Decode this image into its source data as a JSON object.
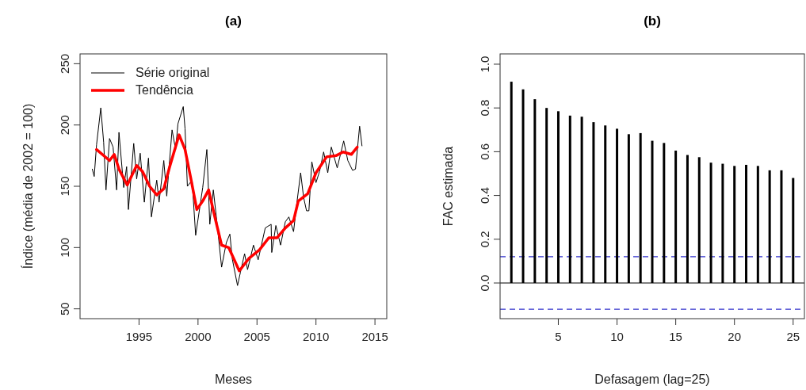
{
  "chart_data": [
    {
      "type": "line",
      "title": "(a)",
      "xlabel": "Meses",
      "ylabel": "Índice (média de 2002 = 100)",
      "xlim": [
        1990,
        2016
      ],
      "xticks": [
        1995,
        2000,
        2005,
        2010,
        2015
      ],
      "ylim": [
        42,
        258
      ],
      "yticks": [
        50,
        100,
        150,
        200,
        250
      ],
      "legend": "top left",
      "grid": false,
      "line_style": "solid",
      "marker": "none",
      "series": [
        {
          "name": "Série original",
          "color": "#000000",
          "x": [
            1991.04,
            1991.2,
            1991.4,
            1991.76,
            1992.0,
            1992.2,
            1992.5,
            1992.8,
            1993.1,
            1993.3,
            1993.7,
            1993.95,
            1994.1,
            1994.55,
            1994.8,
            1995.1,
            1995.45,
            1995.8,
            1996.05,
            1996.5,
            1996.7,
            1997.1,
            1997.35,
            1997.8,
            1998.1,
            1998.3,
            1998.75,
            1998.9,
            1999.1,
            1999.5,
            1999.8,
            2000.4,
            2000.75,
            2001.0,
            2001.3,
            2001.6,
            2002.0,
            2002.4,
            2002.7,
            2002.9,
            2003.35,
            2003.6,
            2003.95,
            2004.2,
            2004.7,
            2005.1,
            2005.7,
            2006.2,
            2006.25,
            2006.6,
            2007.0,
            2007.4,
            2007.7,
            2008.1,
            2008.4,
            2008.7,
            2008.95,
            2009.2,
            2009.4,
            2009.65,
            2010.0,
            2010.3,
            2010.65,
            2011.0,
            2011.3,
            2011.8,
            2012.35,
            2012.7,
            2013.1,
            2013.35,
            2013.7,
            2013.9
          ],
          "values": [
            164,
            158,
            184,
            214,
            186,
            147,
            189,
            182,
            147,
            194,
            149,
            166,
            131,
            185,
            156,
            177,
            137,
            173,
            125,
            155,
            137,
            171,
            142,
            196,
            180,
            201,
            215,
            197,
            150,
            155,
            110,
            149,
            180,
            119,
            147,
            121,
            84,
            104,
            111,
            91,
            69,
            80,
            95,
            82,
            102,
            90,
            116,
            119,
            96,
            118,
            102,
            121,
            125,
            113,
            138,
            161,
            141,
            130,
            130,
            170,
            153,
            162,
            178,
            161,
            182,
            165,
            187,
            171,
            163,
            164,
            199,
            183
          ]
        },
        {
          "name": "Tendência",
          "color": "#ff0000",
          "x": [
            1991.4,
            1992.5,
            1992.9,
            1993.3,
            1994.0,
            1994.8,
            1995.3,
            1995.9,
            1996.5,
            1997.1,
            1997.6,
            1998.4,
            1998.9,
            1999.4,
            1999.9,
            2000.4,
            2000.9,
            2001.4,
            2002.0,
            2002.6,
            2003.5,
            2004.3,
            2005.2,
            2006.0,
            2006.7,
            2007.4,
            2008.1,
            2008.5,
            2009.3,
            2010.0,
            2010.9,
            2011.7,
            2012.3,
            2013.0,
            2013.5
          ],
          "values": [
            180,
            171,
            176,
            164,
            151,
            167,
            162,
            150,
            143,
            148,
            166,
            192,
            180,
            156,
            131,
            138,
            147,
            126,
            102,
            100,
            81,
            91,
            98,
            108,
            108,
            116,
            122,
            138,
            144,
            161,
            174,
            175,
            178,
            176,
            182
          ]
        }
      ]
    },
    {
      "type": "bar",
      "title": "(b)",
      "xlabel": "Defasagem (lag=25)",
      "ylabel": "FAC estimada",
      "xlim": [
        0.04,
        25.96
      ],
      "xticks": [
        5,
        10,
        15,
        20,
        25
      ],
      "ylim": [
        -0.163,
        1.047
      ],
      "yticks": [
        {
          "value": 0,
          "label": "0.0"
        },
        0.2,
        0.4,
        0.6,
        0.8,
        {
          "value": 1,
          "label": "1.0"
        }
      ],
      "grid": false,
      "x": [
        1,
        2,
        3,
        4,
        5,
        6,
        7,
        8,
        9,
        10,
        11,
        12,
        13,
        14,
        15,
        16,
        17,
        18,
        19,
        20,
        21,
        22,
        23,
        24,
        25
      ],
      "series": [
        {
          "color": "#000000",
          "values": [
            0.92,
            0.885,
            0.84,
            0.8,
            0.785,
            0.765,
            0.76,
            0.735,
            0.72,
            0.705,
            0.68,
            0.685,
            0.65,
            0.64,
            0.605,
            0.585,
            0.575,
            0.55,
            0.545,
            0.535,
            0.54,
            0.535,
            0.515,
            0.515,
            0.48
          ]
        }
      ],
      "ref_lines": [
        {
          "axis": "y",
          "value": 0.12,
          "color": "#3333cc",
          "line_style": "dashed"
        },
        {
          "axis": "y",
          "value": -0.12,
          "color": "#3333cc",
          "line_style": "dashed"
        },
        {
          "axis": "y",
          "value": 0,
          "color": "#000000",
          "line_style": "solid"
        }
      ]
    }
  ]
}
